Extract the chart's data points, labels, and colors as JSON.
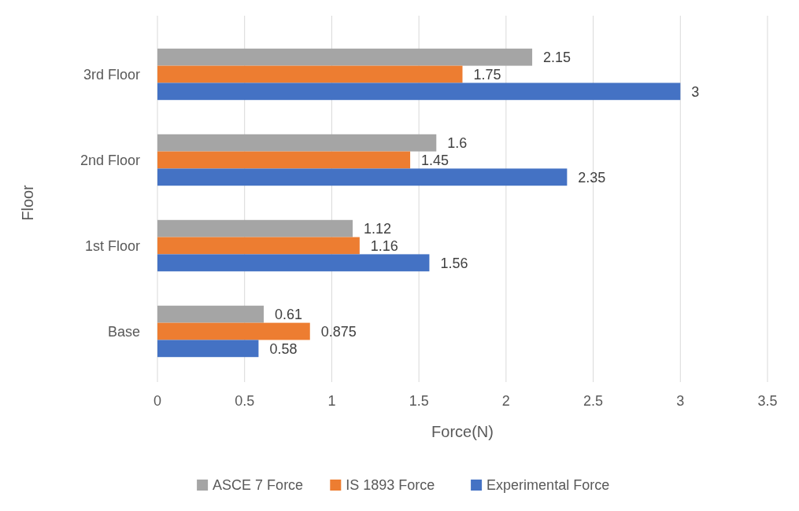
{
  "chart_data": {
    "type": "bar",
    "orientation": "horizontal",
    "xlabel": "Force(N)",
    "ylabel": "Floor",
    "categories": [
      "3rd Floor",
      "2nd Floor",
      "1st Floor",
      "Base"
    ],
    "series": [
      {
        "name": "ASCE 7 Force",
        "color": "#a5a5a5",
        "values": [
          2.15,
          1.6,
          1.12,
          0.61
        ]
      },
      {
        "name": "IS 1893 Force",
        "color": "#ed7d31",
        "values": [
          1.75,
          1.45,
          1.16,
          0.875
        ]
      },
      {
        "name": "Experimental Force",
        "color": "#4472c4",
        "values": [
          3,
          2.35,
          1.56,
          0.58
        ]
      }
    ],
    "xlim": [
      0,
      3.5
    ],
    "xticks": [
      0,
      0.5,
      1,
      1.5,
      2,
      2.5,
      3,
      3.5
    ],
    "grid": "x",
    "legend": "bottom",
    "data_labels": true
  }
}
